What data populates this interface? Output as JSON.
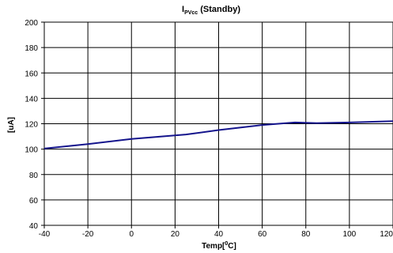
{
  "chart_data": {
    "type": "line",
    "title": {
      "main": "I",
      "subscript": "PVcc",
      "suffix": " (Standby)"
    },
    "xlabel": {
      "prefix": "Temp[",
      "superscript": "0",
      "suffix": "C]"
    },
    "ylabel": "[uA]",
    "xlim": [
      -40,
      120
    ],
    "ylim": [
      40,
      200
    ],
    "x_ticks": [
      -40,
      -20,
      0,
      20,
      40,
      60,
      80,
      100,
      120
    ],
    "y_ticks": [
      40,
      60,
      80,
      100,
      120,
      140,
      160,
      180,
      200
    ],
    "grid": true,
    "legend": "none",
    "series": [
      {
        "color": "#14148c",
        "x": [
          -40,
          -20,
          0,
          25,
          40,
          60,
          75,
          85,
          100,
          120
        ],
        "y": [
          100.5,
          104,
          108,
          111.5,
          115,
          119,
          121,
          120.5,
          121,
          122
        ]
      }
    ]
  }
}
